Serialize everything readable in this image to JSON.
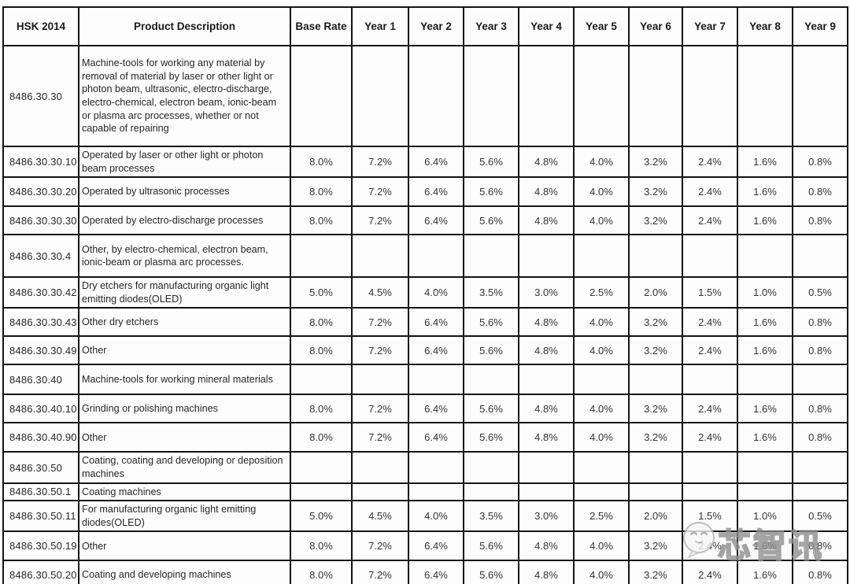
{
  "watermark": {
    "text": "芯智讯"
  },
  "table": {
    "columns": [
      "HSK 2014",
      "Product Description",
      "Base Rate",
      "Year 1",
      "Year 2",
      "Year 3",
      "Year 4",
      "Year 5",
      "Year 6",
      "Year 7",
      "Year 8",
      "Year 9"
    ],
    "rows": [
      {
        "code": "8486.30.30",
        "description": "Machine-tools for working any material by removal of material by laser or other light or photon beam, ultrasonic, electro-discharge, electro-chemical, electron beam, ionic-beam or plasma arc processes, whether or not capable of repairing",
        "rates": [
          "",
          "",
          "",
          "",
          "",
          "",
          "",
          "",
          "",
          ""
        ]
      },
      {
        "code": "8486.30.30.10",
        "description": "Operated by laser or other light or photon beam processes",
        "rates": [
          "8.0%",
          "7.2%",
          "6.4%",
          "5.6%",
          "4.8%",
          "4.0%",
          "3.2%",
          "2.4%",
          "1.6%",
          "0.8%"
        ]
      },
      {
        "code": "8486.30.30.20",
        "description": "Operated by ultrasonic processes",
        "rates": [
          "8.0%",
          "7.2%",
          "6.4%",
          "5.6%",
          "4.8%",
          "4.0%",
          "3.2%",
          "2.4%",
          "1.6%",
          "0.8%"
        ]
      },
      {
        "code": "8486.30.30.30",
        "description": "Operated by electro-discharge processes",
        "rates": [
          "8.0%",
          "7.2%",
          "6.4%",
          "5.6%",
          "4.8%",
          "4.0%",
          "3.2%",
          "2.4%",
          "1.6%",
          "0.8%"
        ]
      },
      {
        "code": "8486.30.30.4",
        "description": "Other, by electro-chemical, electron beam, ionic-beam or plasma arc processes.",
        "rates": [
          "",
          "",
          "",
          "",
          "",
          "",
          "",
          "",
          "",
          ""
        ]
      },
      {
        "code": "8486.30.30.42",
        "description": "Dry etchers for manufacturing organic light emitting diodes(OLED)",
        "rates": [
          "5.0%",
          "4.5%",
          "4.0%",
          "3.5%",
          "3.0%",
          "2.5%",
          "2.0%",
          "1.5%",
          "1.0%",
          "0.5%"
        ]
      },
      {
        "code": "8486.30.30.43",
        "description": "Other dry etchers",
        "rates": [
          "8.0%",
          "7.2%",
          "6.4%",
          "5.6%",
          "4.8%",
          "4.0%",
          "3.2%",
          "2.4%",
          "1.6%",
          "0.8%"
        ]
      },
      {
        "code": "8486.30.30.49",
        "description": "Other",
        "rates": [
          "8.0%",
          "7.2%",
          "6.4%",
          "5.6%",
          "4.8%",
          "4.0%",
          "3.2%",
          "2.4%",
          "1.6%",
          "0.8%"
        ]
      },
      {
        "code": "8486.30.40",
        "description": "Machine-tools for working mineral materials",
        "rates": [
          "",
          "",
          "",
          "",
          "",
          "",
          "",
          "",
          "",
          ""
        ]
      },
      {
        "code": "8486.30.40.10",
        "description": "Grinding  or polishing machines",
        "rates": [
          "8.0%",
          "7.2%",
          "6.4%",
          "5.6%",
          "4.8%",
          "4.0%",
          "3.2%",
          "2.4%",
          "1.6%",
          "0.8%"
        ]
      },
      {
        "code": "8486.30.40.90",
        "description": "Other",
        "rates": [
          "8.0%",
          "7.2%",
          "6.4%",
          "5.6%",
          "4.8%",
          "4.0%",
          "3.2%",
          "2.4%",
          "1.6%",
          "0.8%"
        ]
      },
      {
        "code": "8486.30.50",
        "description": "Coating, coating and developing or deposition machines",
        "rates": [
          "",
          "",
          "",
          "",
          "",
          "",
          "",
          "",
          "",
          ""
        ]
      },
      {
        "code": "8486.30.50.1",
        "description": "Coating machines",
        "rates": [
          "",
          "",
          "",
          "",
          "",
          "",
          "",
          "",
          "",
          ""
        ]
      },
      {
        "code": "8486.30.50.11",
        "description": "For manufacturing organic light emitting diodes(OLED)",
        "rates": [
          "5.0%",
          "4.5%",
          "4.0%",
          "3.5%",
          "3.0%",
          "2.5%",
          "2.0%",
          "1.5%",
          "1.0%",
          "0.5%"
        ]
      },
      {
        "code": "8486.30.50.19",
        "description": "Other",
        "rates": [
          "8.0%",
          "7.2%",
          "6.4%",
          "5.6%",
          "4.8%",
          "4.0%",
          "3.2%",
          "2.4%",
          "1.6%",
          "0.8%"
        ]
      },
      {
        "code": "8486.30.50.20",
        "description": "Coating and developing machines",
        "rates": [
          "8.0%",
          "7.2%",
          "6.4%",
          "5.6%",
          "4.8%",
          "4.0%",
          "3.2%",
          "2.4%",
          "1.6%",
          "0.8%"
        ]
      }
    ]
  }
}
